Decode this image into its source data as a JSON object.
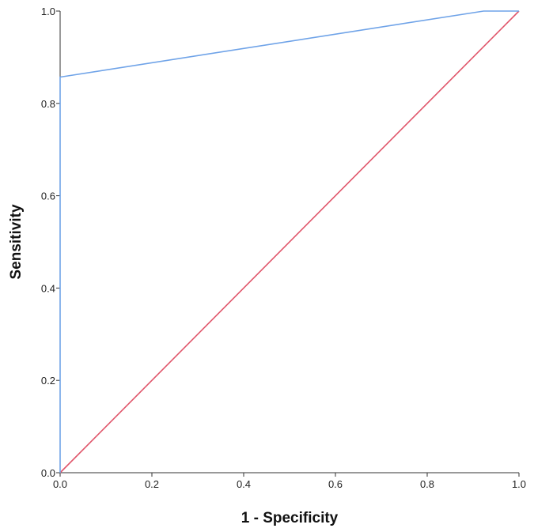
{
  "chart_data": {
    "type": "line",
    "title": "",
    "xlabel": "1 - Specificity",
    "ylabel": "Sensitivity",
    "xlim": [
      0,
      1
    ],
    "ylim": [
      0,
      1
    ],
    "grid": false,
    "legend": "none",
    "x_ticks": [
      "0.0",
      "0.2",
      "0.4",
      "0.6",
      "0.8",
      "1.0"
    ],
    "y_ticks": [
      "0.0",
      "0.2",
      "0.4",
      "0.6",
      "0.8",
      "1.0"
    ],
    "series": [
      {
        "color": "#6fa3e8",
        "points": [
          [
            0,
            0
          ],
          [
            0,
            0.857
          ],
          [
            0.923,
            1.0
          ],
          [
            1.0,
            1.0
          ]
        ]
      },
      {
        "color": "#e0556a",
        "points": [
          [
            0,
            0
          ],
          [
            1,
            1
          ]
        ]
      }
    ]
  }
}
